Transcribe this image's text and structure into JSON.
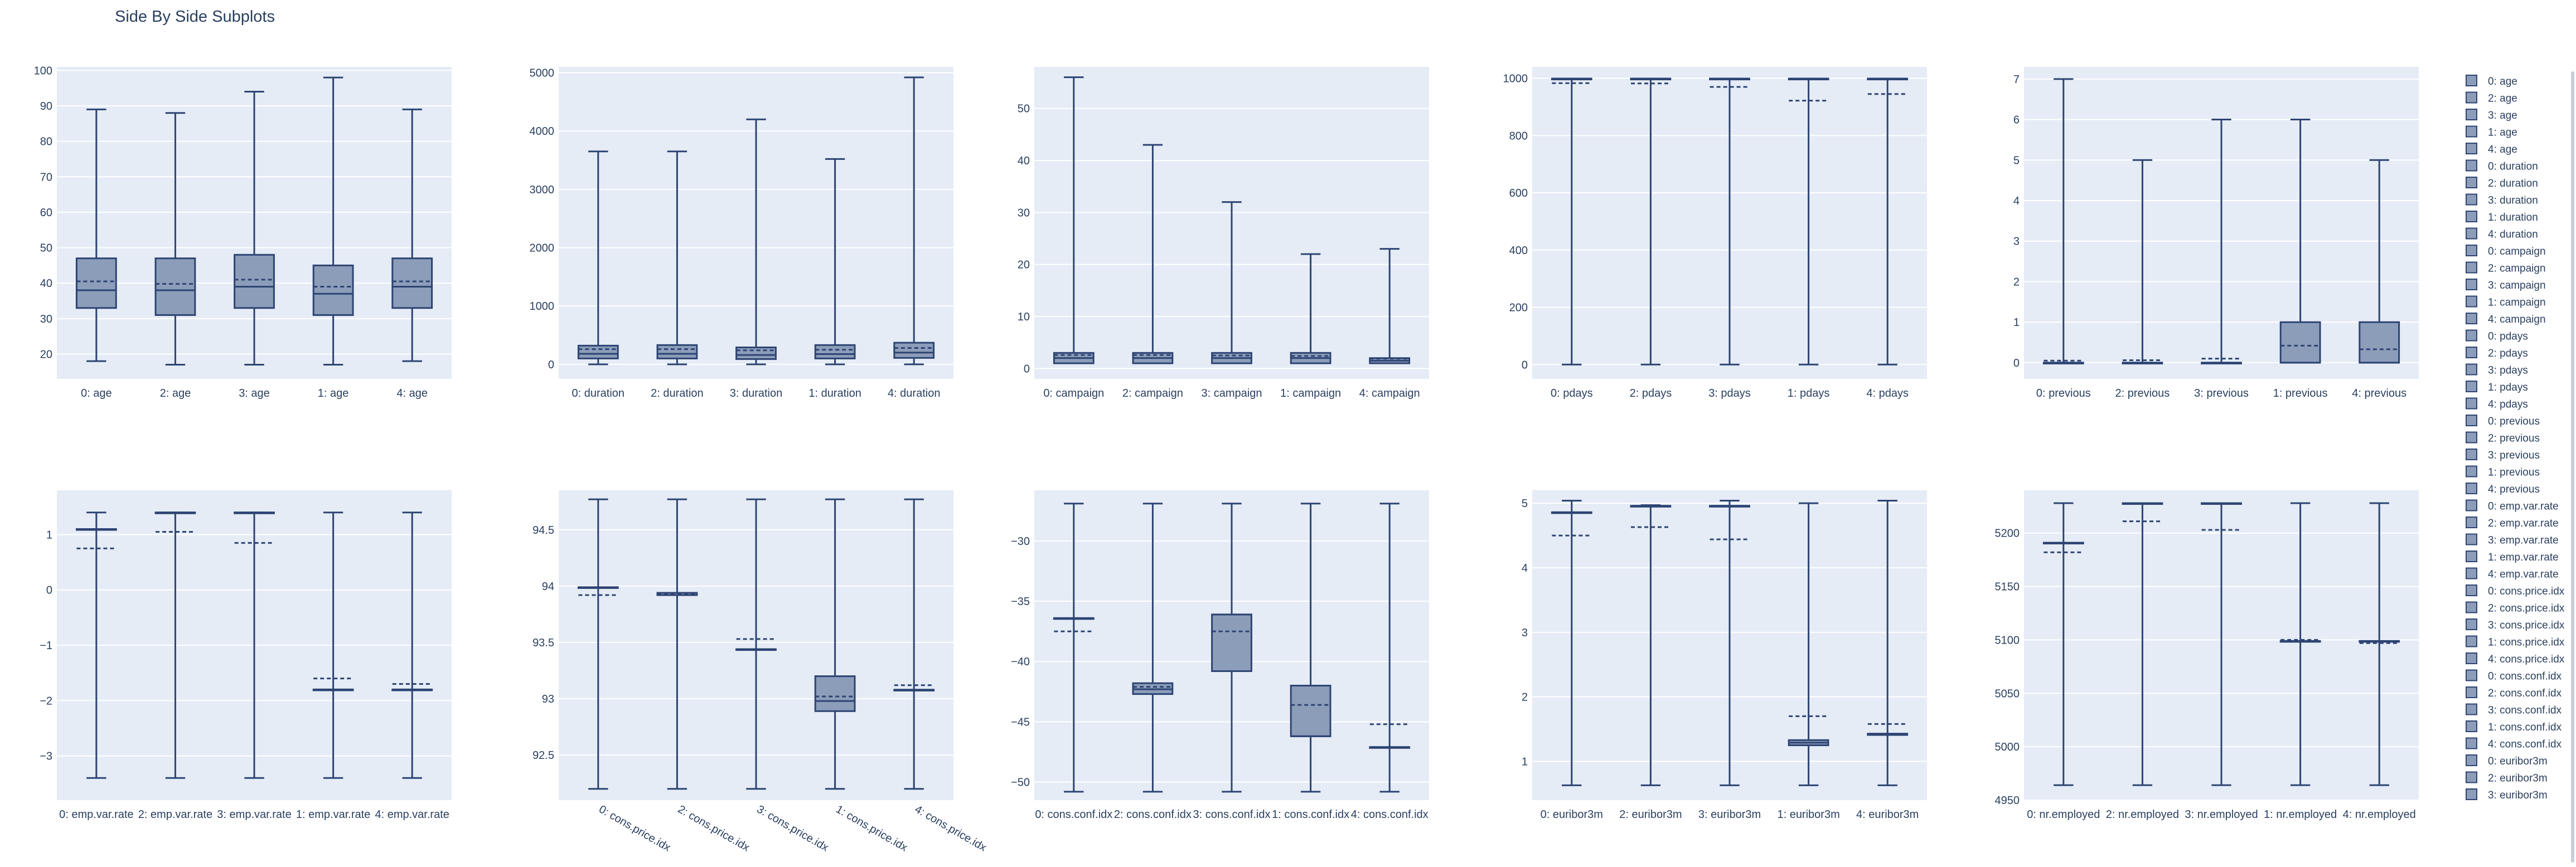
{
  "title": "Side By Side Subplots",
  "colors": {
    "plot_bg": "#E5ECF6",
    "grid": "#ffffff",
    "box_line": "#2D4473",
    "box_fill": "#8C9DBA",
    "text": "#2a3f5f"
  },
  "chart_data": [
    {
      "type": "box",
      "variable": "age",
      "ylim": [
        13,
        101
      ],
      "yticks": [
        20,
        30,
        40,
        50,
        60,
        70,
        80,
        90,
        100
      ],
      "boxes": [
        {
          "name": "0: age",
          "min": 18,
          "q1": 33,
          "median": 38,
          "q3": 47,
          "max": 89,
          "mean": 40.5
        },
        {
          "name": "2: age",
          "min": 17,
          "q1": 31,
          "median": 38,
          "q3": 47,
          "max": 88,
          "mean": 39.8
        },
        {
          "name": "3: age",
          "min": 17,
          "q1": 33,
          "median": 39,
          "q3": 48,
          "max": 94,
          "mean": 41
        },
        {
          "name": "1: age",
          "min": 17,
          "q1": 31,
          "median": 37,
          "q3": 45,
          "max": 98,
          "mean": 39
        },
        {
          "name": "4: age",
          "min": 18,
          "q1": 33,
          "median": 39,
          "q3": 47,
          "max": 89,
          "mean": 40.5
        }
      ]
    },
    {
      "type": "box",
      "variable": "duration",
      "ylim": [
        -250,
        5100
      ],
      "yticks": [
        0,
        1000,
        2000,
        3000,
        4000,
        5000
      ],
      "boxes": [
        {
          "name": "0: duration",
          "min": 0,
          "q1": 100,
          "median": 180,
          "q3": 320,
          "max": 3650,
          "mean": 260
        },
        {
          "name": "2: duration",
          "min": 0,
          "q1": 100,
          "median": 180,
          "q3": 330,
          "max": 3650,
          "mean": 260
        },
        {
          "name": "3: duration",
          "min": 0,
          "q1": 90,
          "median": 160,
          "q3": 290,
          "max": 4200,
          "mean": 240
        },
        {
          "name": "1: duration",
          "min": 0,
          "q1": 100,
          "median": 175,
          "q3": 330,
          "max": 3520,
          "mean": 250
        },
        {
          "name": "4: duration",
          "min": 0,
          "q1": 110,
          "median": 200,
          "q3": 370,
          "max": 4920,
          "mean": 280
        }
      ]
    },
    {
      "type": "box",
      "variable": "campaign",
      "ylim": [
        -2,
        58
      ],
      "yticks": [
        0,
        10,
        20,
        30,
        40,
        50
      ],
      "boxes": [
        {
          "name": "0: campaign",
          "min": 1,
          "q1": 1,
          "median": 2,
          "q3": 3,
          "max": 56,
          "mean": 2.6
        },
        {
          "name": "2: campaign",
          "min": 1,
          "q1": 1,
          "median": 2,
          "q3": 3,
          "max": 43,
          "mean": 2.6
        },
        {
          "name": "3: campaign",
          "min": 1,
          "q1": 1,
          "median": 2,
          "q3": 3,
          "max": 32,
          "mean": 2.5
        },
        {
          "name": "1: campaign",
          "min": 1,
          "q1": 1,
          "median": 2,
          "q3": 3,
          "max": 22,
          "mean": 2.4
        },
        {
          "name": "4: campaign",
          "min": 1,
          "q1": 1,
          "median": 1.5,
          "q3": 2,
          "max": 23,
          "mean": 1.9
        }
      ]
    },
    {
      "type": "box",
      "variable": "pdays",
      "ylim": [
        -50,
        1040
      ],
      "yticks": [
        0,
        200,
        400,
        600,
        800,
        1000
      ],
      "boxes": [
        {
          "name": "0: pdays",
          "min": 0,
          "q1": 999,
          "median": 999,
          "q3": 999,
          "max": 999,
          "mean": 983
        },
        {
          "name": "2: pdays",
          "min": 0,
          "q1": 999,
          "median": 999,
          "q3": 999,
          "max": 999,
          "mean": 982
        },
        {
          "name": "3: pdays",
          "min": 0,
          "q1": 999,
          "median": 999,
          "q3": 999,
          "max": 999,
          "mean": 970
        },
        {
          "name": "1: pdays",
          "min": 0,
          "q1": 999,
          "median": 999,
          "q3": 999,
          "max": 999,
          "mean": 922
        },
        {
          "name": "4: pdays",
          "min": 0,
          "q1": 999,
          "median": 999,
          "q3": 999,
          "max": 999,
          "mean": 945
        }
      ]
    },
    {
      "type": "box",
      "variable": "previous",
      "ylim": [
        -0.4,
        7.3
      ],
      "yticks": [
        0,
        1,
        2,
        3,
        4,
        5,
        6,
        7
      ],
      "boxes": [
        {
          "name": "0: previous",
          "min": 0,
          "q1": 0,
          "median": 0,
          "q3": 0,
          "max": 7,
          "mean": 0.05
        },
        {
          "name": "2: previous",
          "min": 0,
          "q1": 0,
          "median": 0,
          "q3": 0,
          "max": 5,
          "mean": 0.06
        },
        {
          "name": "3: previous",
          "min": 0,
          "q1": 0,
          "median": 0,
          "q3": 0,
          "max": 6,
          "mean": 0.1
        },
        {
          "name": "1: previous",
          "min": 0,
          "q1": 0,
          "median": 0,
          "q3": 1,
          "max": 6,
          "mean": 0.42
        },
        {
          "name": "4: previous",
          "min": 0,
          "q1": 0,
          "median": 0,
          "q3": 1,
          "max": 5,
          "mean": 0.33
        }
      ]
    },
    {
      "type": "box",
      "variable": "emp.var.rate",
      "ylim": [
        -3.8,
        1.8
      ],
      "yticks": [
        -3,
        -2,
        -1,
        0,
        1
      ],
      "boxes": [
        {
          "name": "0: emp.var.rate",
          "min": -3.4,
          "q1": 1.1,
          "median": 1.1,
          "q3": 1.1,
          "max": 1.4,
          "mean": 0.75
        },
        {
          "name": "2: emp.var.rate",
          "min": -3.4,
          "q1": 1.4,
          "median": 1.4,
          "q3": 1.4,
          "max": 1.4,
          "mean": 1.05
        },
        {
          "name": "3: emp.var.rate",
          "min": -3.4,
          "q1": 1.4,
          "median": 1.4,
          "q3": 1.4,
          "max": 1.4,
          "mean": 0.85
        },
        {
          "name": "1: emp.var.rate",
          "min": -3.4,
          "q1": -1.8,
          "median": -1.8,
          "q3": -1.8,
          "max": 1.4,
          "mean": -1.6
        },
        {
          "name": "4: emp.var.rate",
          "min": -3.4,
          "q1": -1.8,
          "median": -1.8,
          "q3": -1.8,
          "max": 1.4,
          "mean": -1.7
        }
      ]
    },
    {
      "type": "box",
      "variable": "cons.price.idx",
      "ylim": [
        92.1,
        94.85
      ],
      "yticks": [
        92.5,
        93,
        93.5,
        94,
        94.5
      ],
      "boxes": [
        {
          "name": "0: cons.price.idx",
          "min": 92.2,
          "q1": 93.99,
          "median": 93.99,
          "q3": 93.99,
          "max": 94.77,
          "mean": 93.92
        },
        {
          "name": "2: cons.price.idx",
          "min": 92.2,
          "q1": 93.92,
          "median": 93.92,
          "q3": 93.94,
          "max": 94.77,
          "mean": 93.93
        },
        {
          "name": "3: cons.price.idx",
          "min": 92.2,
          "q1": 93.44,
          "median": 93.44,
          "q3": 93.44,
          "max": 94.77,
          "mean": 93.53
        },
        {
          "name": "1: cons.price.idx",
          "min": 92.2,
          "q1": 92.89,
          "median": 92.98,
          "q3": 93.2,
          "max": 94.77,
          "mean": 93.02
        },
        {
          "name": "4: cons.price.idx",
          "min": 92.2,
          "q1": 93.08,
          "median": 93.08,
          "q3": 93.08,
          "max": 94.77,
          "mean": 93.12
        }
      ]
    },
    {
      "type": "box",
      "variable": "cons.conf.idx",
      "ylim": [
        -51.5,
        -25.8
      ],
      "yticks": [
        -50,
        -45,
        -40,
        -35,
        -30
      ],
      "boxes": [
        {
          "name": "0: cons.conf.idx",
          "min": -50.8,
          "q1": -36.4,
          "median": -36.4,
          "q3": -36.4,
          "max": -26.9,
          "mean": -37.5
        },
        {
          "name": "2: cons.conf.idx",
          "min": -50.8,
          "q1": -42.7,
          "median": -42.3,
          "q3": -41.8,
          "max": -26.9,
          "mean": -42.1
        },
        {
          "name": "3: cons.conf.idx",
          "min": -50.8,
          "q1": -40.8,
          "median": -36.1,
          "q3": -36.1,
          "max": -26.9,
          "mean": -37.5
        },
        {
          "name": "1: cons.conf.idx",
          "min": -50.8,
          "q1": -46.2,
          "median": -46.2,
          "q3": -42,
          "max": -26.9,
          "mean": -43.6
        },
        {
          "name": "4: cons.conf.idx",
          "min": -50.8,
          "q1": -47.1,
          "median": -47.1,
          "q3": -47.1,
          "max": -26.9,
          "mean": -45.2
        }
      ]
    },
    {
      "type": "box",
      "variable": "euribor3m",
      "ylim": [
        0.4,
        5.2
      ],
      "yticks": [
        1,
        2,
        3,
        4,
        5
      ],
      "boxes": [
        {
          "name": "0: euribor3m",
          "min": 0.63,
          "q1": 4.86,
          "median": 4.86,
          "q3": 4.86,
          "max": 5.04,
          "mean": 4.5
        },
        {
          "name": "2: euribor3m",
          "min": 0.63,
          "q1": 4.96,
          "median": 4.96,
          "q3": 4.96,
          "max": 4.97,
          "mean": 4.63
        },
        {
          "name": "3: euribor3m",
          "min": 0.63,
          "q1": 4.96,
          "median": 4.96,
          "q3": 4.96,
          "max": 5.04,
          "mean": 4.44
        },
        {
          "name": "1: euribor3m",
          "min": 0.63,
          "q1": 1.25,
          "median": 1.29,
          "q3": 1.33,
          "max": 5.0,
          "mean": 1.7
        },
        {
          "name": "4: euribor3m",
          "min": 0.63,
          "q1": 1.41,
          "median": 1.42,
          "q3": 1.43,
          "max": 5.04,
          "mean": 1.58
        }
      ]
    },
    {
      "type": "box",
      "variable": "nr.employed",
      "ylim": [
        4950,
        5240
      ],
      "yticks": [
        4950,
        5000,
        5050,
        5100,
        5150,
        5200
      ],
      "boxes": [
        {
          "name": "0: nr.employed",
          "min": 4964,
          "q1": 5191,
          "median": 5191,
          "q3": 5191,
          "max": 5228,
          "mean": 5182
        },
        {
          "name": "2: nr.employed",
          "min": 4964,
          "q1": 5228,
          "median": 5228,
          "q3": 5228,
          "max": 5228,
          "mean": 5211
        },
        {
          "name": "3: nr.employed",
          "min": 4964,
          "q1": 5228,
          "median": 5228,
          "q3": 5228,
          "max": 5228,
          "mean": 5203
        },
        {
          "name": "1: nr.employed",
          "min": 4964,
          "q1": 5099,
          "median": 5099,
          "q3": 5099,
          "max": 5228,
          "mean": 5100
        },
        {
          "name": "4: nr.employed",
          "min": 4964,
          "q1": 5099,
          "median": 5099,
          "q3": 5099,
          "max": 5228,
          "mean": 5097
        }
      ]
    }
  ],
  "legend": [
    "0: age",
    "2: age",
    "3: age",
    "1: age",
    "4: age",
    "0: duration",
    "2: duration",
    "3: duration",
    "1: duration",
    "4: duration",
    "0: campaign",
    "2: campaign",
    "3: campaign",
    "1: campaign",
    "4: campaign",
    "0: pdays",
    "2: pdays",
    "3: pdays",
    "1: pdays",
    "4: pdays",
    "0: previous",
    "2: previous",
    "3: previous",
    "1: previous",
    "4: previous",
    "0: emp.var.rate",
    "2: emp.var.rate",
    "3: emp.var.rate",
    "1: emp.var.rate",
    "4: emp.var.rate",
    "0: cons.price.idx",
    "2: cons.price.idx",
    "3: cons.price.idx",
    "1: cons.price.idx",
    "4: cons.price.idx",
    "0: cons.conf.idx",
    "2: cons.conf.idx",
    "3: cons.conf.idx",
    "1: cons.conf.idx",
    "4: cons.conf.idx",
    "0: euribor3m",
    "2: euribor3m",
    "3: euribor3m"
  ]
}
